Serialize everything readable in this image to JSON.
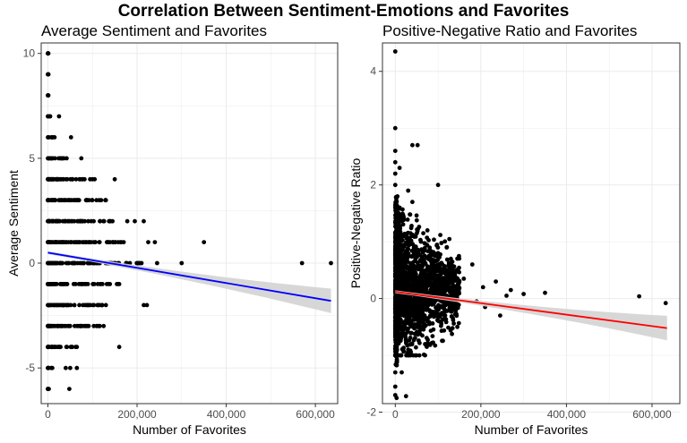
{
  "title": "Correlation Between Sentiment-Emotions and Favorites",
  "colors": {
    "points": "#000000",
    "fit_left": "#0000ff",
    "fit_right": "#ff0000",
    "band": "#d3d3d3",
    "grid": "#ebebeb",
    "border": "#333333"
  },
  "chart_data": [
    {
      "type": "scatter",
      "title": "Average Sentiment and Favorites",
      "xlabel": "Number of Favorites",
      "ylabel": "Average Sentiment",
      "xlim": [
        -15000,
        650000
      ],
      "ylim": [
        -6.7,
        10.5
      ],
      "xticks": [
        0,
        200000,
        400000,
        600000
      ],
      "xtick_labels": [
        "0",
        "200,000",
        "400,000",
        "600,000"
      ],
      "yticks": [
        -5,
        0,
        5,
        10
      ],
      "ytick_labels": [
        "-5",
        "0",
        "5",
        "10"
      ],
      "grid": true,
      "fit_line": {
        "x": [
          0,
          635000
        ],
        "y": [
          0.5,
          -1.8
        ],
        "color": "blue",
        "band": true
      },
      "bands": [
        {
          "y": 10,
          "max": 1000
        },
        {
          "y": 9,
          "max": 1000
        },
        {
          "y": 8,
          "max": 1000
        },
        {
          "y": 7,
          "max": 5000
        },
        {
          "y": 6,
          "max": 15000
        },
        {
          "y": 5,
          "max": 42000
        },
        {
          "y": 4,
          "max": 105000
        },
        {
          "y": 3,
          "max": 130000
        },
        {
          "y": 2,
          "max": 145000
        },
        {
          "y": 1,
          "max": 165000
        },
        {
          "y": 0,
          "max": 210000
        },
        {
          "y": -1,
          "max": 160000
        },
        {
          "y": -2,
          "max": 130000
        },
        {
          "y": -3,
          "max": 125000
        },
        {
          "y": -4,
          "max": 65000
        },
        {
          "y": -5,
          "max": 10000
        },
        {
          "y": -6,
          "max": 2000
        }
      ],
      "points": [
        [
          52000,
          6
        ],
        [
          150000,
          4
        ],
        [
          170000,
          1
        ],
        [
          178000,
          2
        ],
        [
          195000,
          2
        ],
        [
          215000,
          2
        ],
        [
          225000,
          1
        ],
        [
          240000,
          1
        ],
        [
          350000,
          1
        ],
        [
          245000,
          0
        ],
        [
          300000,
          0
        ],
        [
          570000,
          0
        ],
        [
          635000,
          0
        ],
        [
          215000,
          -2
        ],
        [
          222000,
          -2
        ],
        [
          160000,
          -4
        ],
        [
          40000,
          -5
        ],
        [
          50000,
          -5
        ],
        [
          65000,
          -5
        ],
        [
          48000,
          -6
        ],
        [
          0,
          10
        ],
        [
          0,
          9
        ],
        [
          0,
          8
        ],
        [
          25000,
          7
        ],
        [
          75000,
          5
        ]
      ]
    },
    {
      "type": "scatter",
      "title": "Positive-Negative Ratio and Favorites",
      "xlabel": "Number of Favorites",
      "ylabel": "Positive-Negative Ratio",
      "xlim": [
        -30000,
        665000
      ],
      "ylim": [
        -1.85,
        4.5
      ],
      "xticks": [
        0,
        200000,
        400000,
        600000
      ],
      "xtick_labels": [
        "0",
        "200,000",
        "400,000",
        "600,000"
      ],
      "yticks": [
        -2,
        0,
        2,
        4
      ],
      "ytick_labels": [
        "-2",
        "0",
        "2",
        "4"
      ],
      "grid": true,
      "fit_line": {
        "x": [
          0,
          635000
        ],
        "y": [
          0.12,
          -0.52
        ],
        "color": "red",
        "band": true
      },
      "points": [
        [
          0,
          4.35
        ],
        [
          0,
          3.0
        ],
        [
          0,
          2.6
        ],
        [
          0,
          2.4
        ],
        [
          0,
          2.2
        ],
        [
          0,
          2.0
        ],
        [
          5000,
          1.8
        ],
        [
          10000,
          2.3
        ],
        [
          40000,
          2.7
        ],
        [
          52000,
          2.7
        ],
        [
          30000,
          1.9
        ],
        [
          40000,
          1.7
        ],
        [
          100000,
          2.0
        ],
        [
          60000,
          1.0
        ],
        [
          100000,
          0.8
        ],
        [
          130000,
          0.7
        ],
        [
          145000,
          0.5
        ],
        [
          160000,
          0.35
        ],
        [
          205000,
          0.2
        ],
        [
          235000,
          0.3
        ],
        [
          260000,
          0.05
        ],
        [
          300000,
          0.08
        ],
        [
          350000,
          0.1
        ],
        [
          570000,
          0.04
        ],
        [
          632000,
          -0.08
        ],
        [
          210000,
          -0.15
        ],
        [
          245000,
          -0.3
        ],
        [
          145000,
          -0.5
        ],
        [
          0,
          -1.0
        ],
        [
          0,
          -1.3
        ],
        [
          0,
          -1.55
        ],
        [
          0,
          -1.7
        ],
        [
          3000,
          -1.75
        ],
        [
          25000,
          -1.72
        ],
        [
          15000,
          -1.3
        ],
        [
          30000,
          -0.9
        ],
        [
          55000,
          -0.6
        ],
        [
          80000,
          -0.45
        ],
        [
          115000,
          -0.3
        ],
        [
          180000,
          0.6
        ],
        [
          120000,
          0.9
        ],
        [
          75000,
          1.2
        ],
        [
          20000,
          1.4
        ],
        [
          10000,
          1.6
        ],
        [
          8000,
          1.5
        ],
        [
          270000,
          0.15
        ],
        [
          190000,
          -0.05
        ],
        [
          95000,
          0.5
        ]
      ]
    }
  ]
}
